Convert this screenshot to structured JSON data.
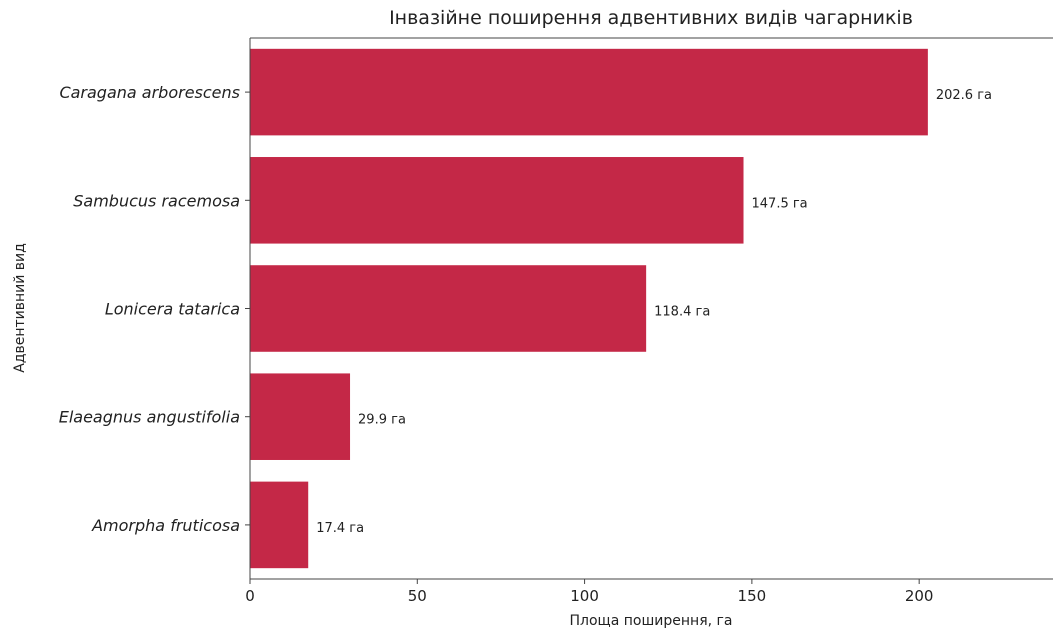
{
  "chart_data": {
    "type": "bar",
    "orientation": "horizontal",
    "title": "Інвазійне поширення адвентивних видів чагарників",
    "xlabel": "Площа поширення, га",
    "ylabel": "Адвентивний вид",
    "categories": [
      "Caragana arborescens",
      "Sambucus racemosa",
      "Lonicera tatarica",
      "Elaeagnus angustifolia",
      "Amorpha fruticosa"
    ],
    "values": [
      202.6,
      147.5,
      118.4,
      29.9,
      17.4
    ],
    "value_labels": [
      "202.6 га",
      "147.5 га",
      "118.4 га",
      "29.9 га",
      "17.4 га"
    ],
    "xlim": [
      0,
      240
    ],
    "xticks": [
      0,
      50,
      100,
      150,
      200
    ],
    "xtick_labels": [
      "0",
      "50",
      "100",
      "150",
      "200"
    ],
    "grid": false,
    "bar_color": "#c42847"
  }
}
